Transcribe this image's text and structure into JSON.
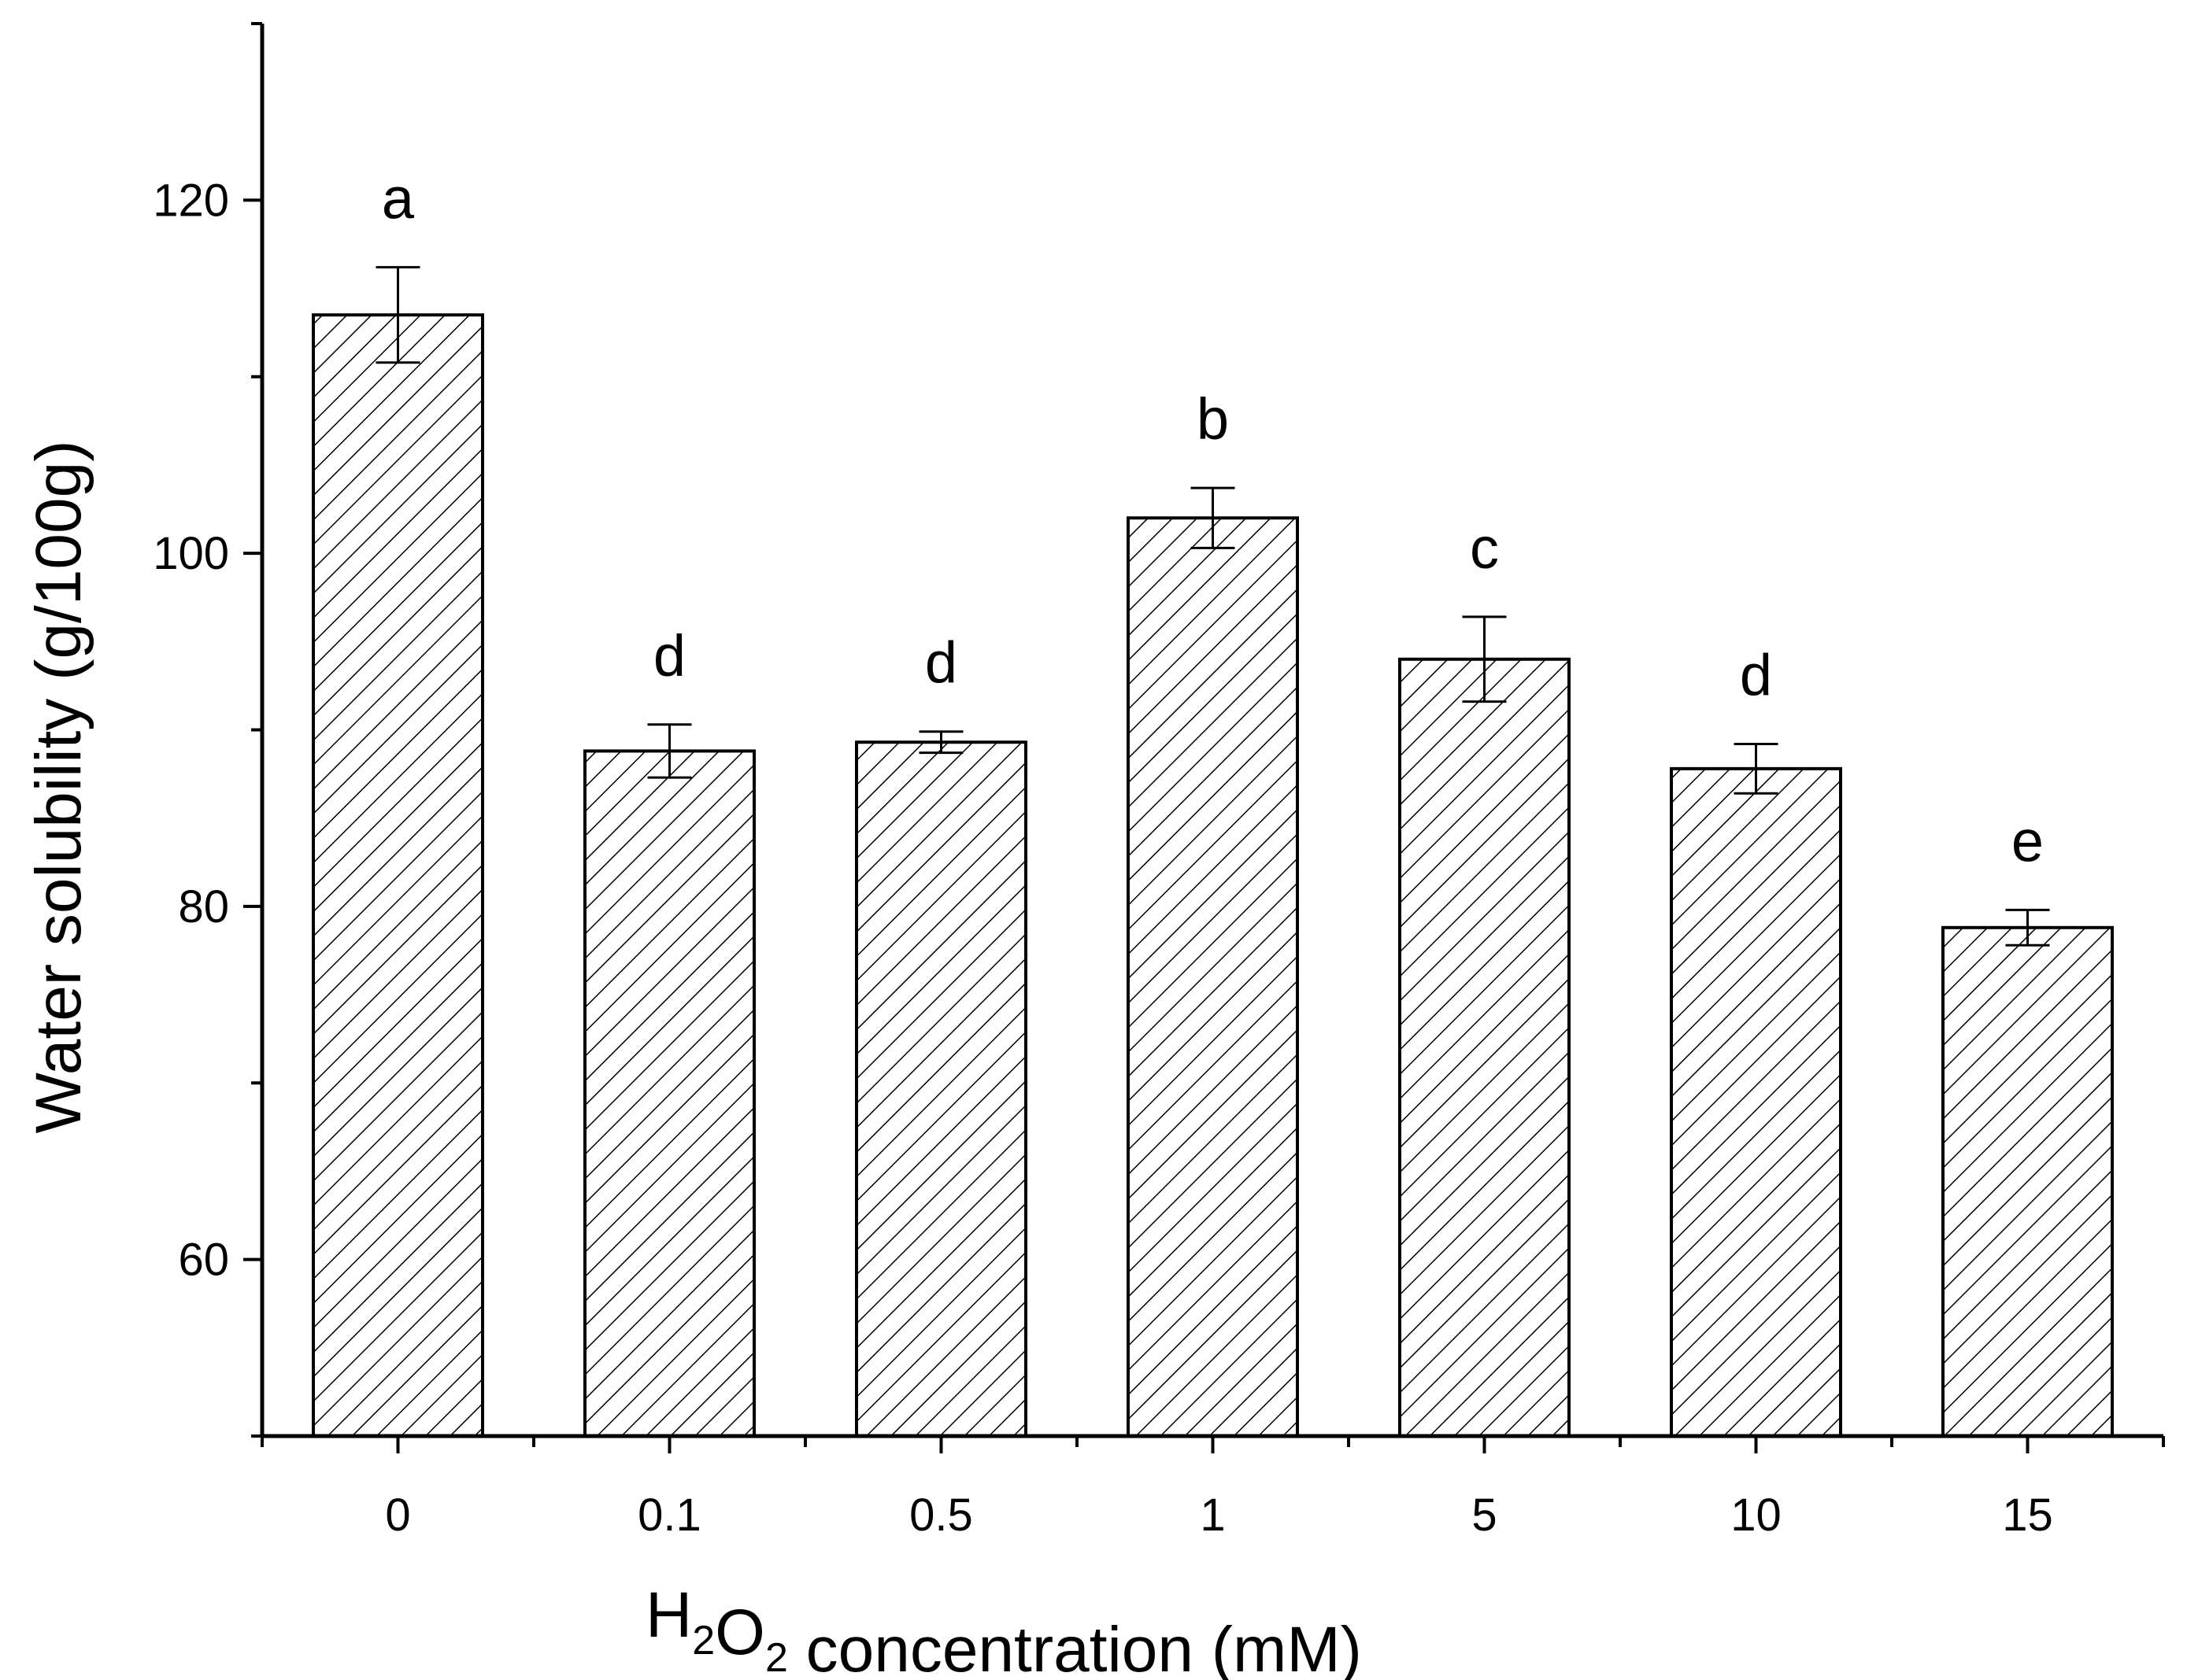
{
  "chart_data": {
    "type": "bar",
    "xlabel": {
      "parts": [
        {
          "text": "H",
          "sub": false
        },
        {
          "text": "2",
          "sub": true
        },
        {
          "text": "O",
          "sub": false
        },
        {
          "text": "2",
          "sub": true
        },
        {
          "text": " concentration (mM)",
          "sub": false
        }
      ]
    },
    "ylabel": "Water solubility  (g/100g)",
    "ylim": [
      50,
      130
    ],
    "yticks": [
      60,
      80,
      100,
      120
    ],
    "categories": [
      "0",
      "0.1",
      "0.5",
      "1",
      "5",
      "10",
      "15"
    ],
    "values": [
      113.5,
      88.8,
      89.3,
      102.0,
      94.0,
      87.8,
      78.8
    ],
    "errors": [
      2.7,
      1.5,
      0.6,
      1.7,
      2.4,
      1.4,
      1.0
    ],
    "significance": [
      "a",
      "d",
      "d",
      "b",
      "c",
      "d",
      "e"
    ],
    "bar_fill": "hatched",
    "colors": {
      "bar_stroke": "#000000",
      "hatch": "#000000",
      "background": "#ffffff"
    }
  }
}
